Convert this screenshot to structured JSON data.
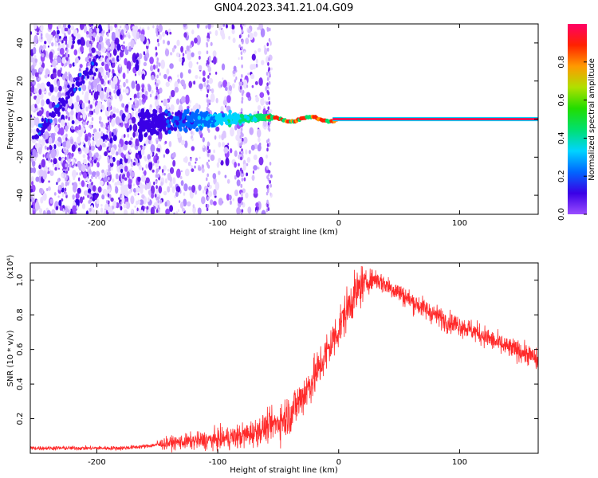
{
  "figure": {
    "title": "GN04.2023.341.21.04.G09"
  },
  "chart_data": [
    {
      "type": "heatmap",
      "xlabel": "Height of straight line (km)",
      "ylabel": "Frequency (Hz)",
      "xlim": [
        -255,
        165
      ],
      "ylim": [
        -50,
        50
      ],
      "x_ticks": [
        -200,
        -100,
        0,
        100
      ],
      "y_ticks": [
        -40,
        -20,
        0,
        20,
        40
      ],
      "grid": false,
      "colorbar": {
        "label": "Normalized spectral amplitude",
        "range": [
          0.0,
          1.0
        ],
        "ticks": [
          "0.0",
          "0.2",
          "0.4",
          "0.6",
          "0.8"
        ],
        "colors": [
          "#ffffff",
          "#9a4dff",
          "#3a00e6",
          "#0066ff",
          "#00d4ff",
          "#00e070",
          "#22dd00",
          "#b0e000",
          "#ff9900",
          "#ff2200",
          "#ff0066"
        ]
      },
      "features": {
        "carrier_line": {
          "frequency_hz": 0,
          "x_from": -60,
          "x_to": 165,
          "amplitude": 1.0
        },
        "noise_region": {
          "x_from": -255,
          "x_to": -55
        },
        "diagonal_streak": {
          "x_from": -250,
          "x_to": -200,
          "freq_from": -8,
          "freq_to": 30
        }
      }
    },
    {
      "type": "line",
      "xlabel": "Height of straight line (km)",
      "ylabel": "SNR (10 * v/v)",
      "y_multiplier": "(x10⁴)",
      "xlim": [
        -255,
        165
      ],
      "ylim": [
        0,
        1.1
      ],
      "x_ticks": [
        -200,
        -100,
        0,
        100
      ],
      "y_ticks": [
        "0.2",
        "0.4",
        "0.6",
        "0.8",
        "1.0"
      ],
      "grid": false,
      "color": "#ff2a2a",
      "series": [
        {
          "x": [
            -255,
            -230,
            -200,
            -180,
            -160,
            -140,
            -120,
            -100,
            -90,
            -80,
            -70,
            -60,
            -50,
            -40,
            -30,
            -20,
            -10,
            0,
            10,
            20,
            30,
            40,
            50,
            60,
            70,
            80,
            90,
            100,
            110,
            120,
            130,
            140,
            150,
            160,
            165
          ],
          "values": [
            0.03,
            0.03,
            0.03,
            0.03,
            0.04,
            0.06,
            0.07,
            0.08,
            0.09,
            0.1,
            0.12,
            0.15,
            0.18,
            0.23,
            0.33,
            0.44,
            0.58,
            0.72,
            0.88,
            0.98,
            1.01,
            0.97,
            0.93,
            0.88,
            0.84,
            0.8,
            0.76,
            0.74,
            0.71,
            0.68,
            0.64,
            0.61,
            0.59,
            0.56,
            0.53
          ]
        }
      ]
    }
  ]
}
